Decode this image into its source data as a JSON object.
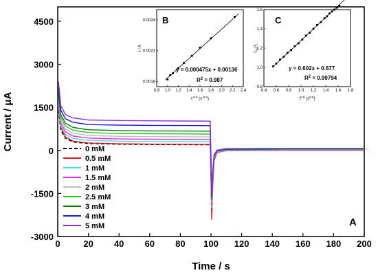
{
  "chart_data": {
    "type": "line",
    "panel_label": "A",
    "xlabel": "Time / s",
    "ylabel": "Current / μA",
    "xlim": [
      0,
      200
    ],
    "ylim": [
      -3000,
      5000
    ],
    "xticks": [
      "0",
      "20",
      "40",
      "60",
      "80",
      "100",
      "120",
      "140",
      "160",
      "180",
      "200"
    ],
    "yticks": [
      "-3000",
      "-1500",
      "0",
      "1500",
      "3000",
      "4500"
    ],
    "x": [
      0.5,
      2,
      5,
      10,
      20,
      40,
      60,
      80,
      99.5,
      100.5,
      101,
      102,
      104,
      110,
      150,
      200
    ],
    "series": [
      {
        "name": "0 mM",
        "color": "#000000",
        "dash": true,
        "values": [
          1400,
          700,
          420,
          290,
          240,
          215,
          205,
          200,
          195,
          -2100,
          -1200,
          -300,
          -60,
          -10,
          0,
          0
        ]
      },
      {
        "name": "0.5 mM",
        "color": "#e8141c",
        "dash": false,
        "values": [
          1500,
          800,
          480,
          320,
          260,
          230,
          220,
          215,
          210,
          -2400,
          -1400,
          -350,
          -70,
          -10,
          0,
          0
        ]
      },
      {
        "name": "1 mM",
        "color": "#3ddff0",
        "dash": false,
        "values": [
          1600,
          870,
          560,
          420,
          350,
          320,
          310,
          305,
          300,
          -2000,
          -1100,
          -280,
          -50,
          0,
          10,
          10
        ]
      },
      {
        "name": "1.5 mM",
        "color": "#f024e8",
        "dash": false,
        "values": [
          1700,
          950,
          650,
          500,
          430,
          400,
          390,
          385,
          380,
          -1900,
          -1050,
          -260,
          -40,
          10,
          20,
          20
        ]
      },
      {
        "name": "2 mM",
        "color": "#bdbdbd",
        "dash": false,
        "values": [
          1800,
          1050,
          750,
          600,
          520,
          490,
          480,
          475,
          470,
          -1800,
          -1000,
          -240,
          -30,
          20,
          30,
          30
        ]
      },
      {
        "name": "2.5 mM",
        "color": "#26c426",
        "dash": false,
        "values": [
          1900,
          1150,
          850,
          700,
          620,
          590,
          580,
          575,
          570,
          -1750,
          -950,
          -220,
          -20,
          30,
          40,
          40
        ]
      },
      {
        "name": "3 mM",
        "color": "#0a7a0a",
        "dash": false,
        "values": [
          2000,
          1250,
          950,
          800,
          720,
          690,
          680,
          675,
          670,
          -1700,
          -900,
          -200,
          -10,
          40,
          50,
          50
        ]
      },
      {
        "name": "4 mM",
        "color": "#1a1ae0",
        "dash": false,
        "values": [
          2200,
          1400,
          1100,
          980,
          900,
          880,
          870,
          865,
          860,
          -1600,
          -850,
          -180,
          0,
          50,
          60,
          60
        ]
      },
      {
        "name": "5 mM",
        "color": "#8a2be2",
        "dash": false,
        "values": [
          2400,
          1550,
          1250,
          1130,
          1060,
          1040,
          1030,
          1025,
          1020,
          -1500,
          -800,
          -160,
          10,
          60,
          70,
          70
        ]
      }
    ]
  },
  "inset_b": {
    "label": "B",
    "xlabel": "t",
    "xlabel_sup": "-0.5",
    "xlabel_unit": " (s",
    "xlabel_unit_sup": "-0.5",
    "xlabel_unit_close": ")",
    "ylabel": "I / A",
    "xlim": [
      0.8,
      2.4
    ],
    "ylim": [
      0.00175,
      0.0025
    ],
    "xticks": [
      "0.8",
      "1.0",
      "1.2",
      "1.4",
      "1.6",
      "1.8",
      "2.0",
      "2.2",
      "2.4"
    ],
    "yticks": [
      "0.0018",
      "0.0021",
      "0.0024"
    ],
    "points": [
      [
        1.0,
        0.00182
      ],
      [
        1.05,
        0.00186
      ],
      [
        1.1,
        0.00188
      ],
      [
        1.2,
        0.00193
      ],
      [
        1.3,
        0.00198
      ],
      [
        1.45,
        0.00205
      ],
      [
        1.6,
        0.00213
      ],
      [
        1.8,
        0.00222
      ],
      [
        2.24,
        0.00243
      ]
    ],
    "fit": {
      "slope": 0.000475,
      "intercept": 0.00136
    },
    "equation": "y = 0.000475x + 0.00136",
    "r2_lead": "R",
    "r2_sup": "2",
    "r2_value": " = 0.987"
  },
  "inset_c": {
    "label": "C",
    "xlabel": "t",
    "xlabel_sup": "0.5",
    "xlabel_unit": " (s",
    "xlabel_unit_sup": "0.5",
    "xlabel_unit_close": ")",
    "ylabel_lead": "I",
    "ylabel_sub1": "cat",
    "ylabel_mid": "/I",
    "ylabel_sub2": "L",
    "xlim": [
      0.4,
      1.8
    ],
    "ylim": [
      0.8,
      1.6
    ],
    "xticks": [
      "0.4",
      "0.6",
      "0.8",
      "1.0",
      "1.2",
      "1.4",
      "1.6",
      "1.8"
    ],
    "yticks": [
      "0.8",
      "1.0",
      "1.2",
      "1.4",
      "1.6"
    ],
    "points": [
      [
        0.55,
        1.01
      ],
      [
        0.6,
        1.04
      ],
      [
        0.66,
        1.08
      ],
      [
        0.72,
        1.11
      ],
      [
        0.78,
        1.15
      ],
      [
        0.84,
        1.18
      ],
      [
        0.9,
        1.22
      ],
      [
        0.96,
        1.25
      ],
      [
        1.02,
        1.29
      ],
      [
        1.08,
        1.33
      ],
      [
        1.14,
        1.36
      ],
      [
        1.2,
        1.4
      ],
      [
        1.26,
        1.44
      ],
      [
        1.32,
        1.47
      ],
      [
        1.38,
        1.51
      ],
      [
        1.42,
        1.53
      ],
      [
        1.46,
        1.56
      ],
      [
        1.5,
        1.58
      ],
      [
        1.54,
        1.6
      ],
      [
        1.58,
        1.62
      ],
      [
        1.62,
        1.64
      ]
    ],
    "fit": {
      "slope": 0.602,
      "intercept": 0.677
    },
    "equation": "y = 0.602x + 0.677",
    "r2_lead": "R",
    "r2_sup": "2",
    "r2_value": " = 0.99794"
  }
}
